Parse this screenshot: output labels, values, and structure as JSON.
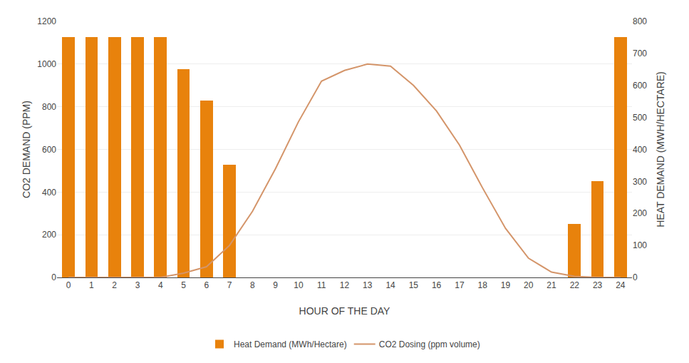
{
  "chart_data": {
    "type": "bar",
    "xlabel": "HOUR OF THE DAY",
    "ylabel": "CO2 DEMAND (PPM)",
    "y2label": "HEAT DEMAND (MWH/HECTARE)",
    "x": [
      0,
      1,
      2,
      3,
      4,
      5,
      6,
      7,
      8,
      9,
      10,
      11,
      12,
      13,
      14,
      15,
      16,
      17,
      18,
      19,
      20,
      21,
      22,
      23,
      24
    ],
    "xlim": [
      -0.5,
      24.5
    ],
    "xticks": [
      0,
      1,
      2,
      3,
      4,
      5,
      6,
      7,
      8,
      9,
      10,
      11,
      12,
      13,
      14,
      15,
      16,
      17,
      18,
      19,
      20,
      21,
      22,
      23,
      24
    ],
    "ylim": [
      0,
      1200
    ],
    "yticks": [
      0,
      200,
      400,
      600,
      800,
      1000,
      1200
    ],
    "y2lim": [
      0,
      800
    ],
    "y2ticks": [
      0,
      100,
      200,
      300,
      400,
      500,
      600,
      700,
      800
    ],
    "grid": true,
    "legend": "bottom",
    "series": [
      {
        "name": "Heat Demand (MWh/Hectare)",
        "type": "bar",
        "axis": "y2",
        "color": "#E8820C",
        "values": [
          750,
          750,
          750,
          750,
          750,
          650,
          553,
          353,
          0,
          0,
          0,
          0,
          0,
          0,
          0,
          0,
          0,
          0,
          0,
          0,
          0,
          0,
          167,
          300,
          750
        ]
      },
      {
        "name": "CO2 Dosing (ppm volume)",
        "type": "line",
        "color": "#D4956A",
        "values": [
          0,
          0,
          0,
          0,
          0,
          20,
          50,
          150,
          310,
          510,
          730,
          920,
          970,
          1000,
          990,
          900,
          780,
          620,
          420,
          230,
          90,
          25,
          5,
          0,
          0
        ]
      }
    ]
  }
}
